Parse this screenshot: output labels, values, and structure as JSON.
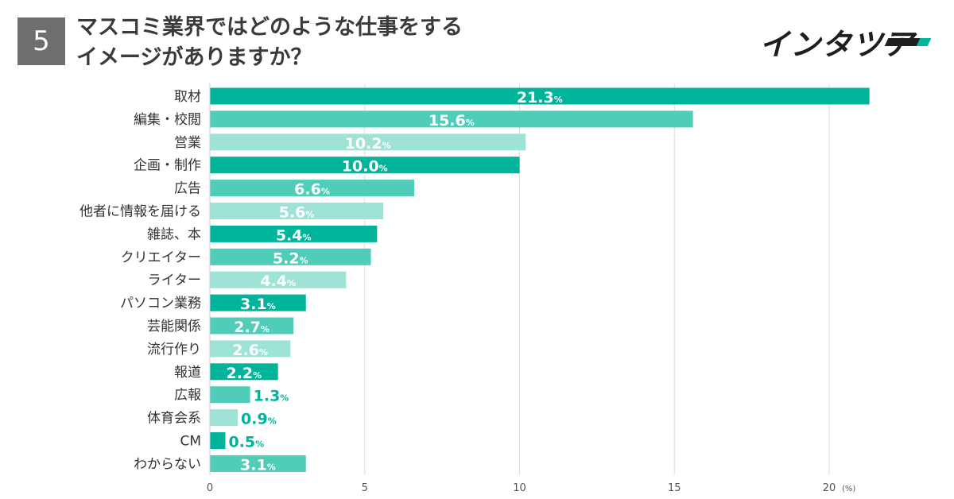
{
  "badge": "5",
  "title_line1": "マスコミ業界ではどのような仕事をする",
  "title_line2": "イメージがありますか？",
  "logo_text": "インタツア",
  "colors": {
    "dark": "#00b39b",
    "mid": "#4fcdb9",
    "light": "#9fe3d7",
    "grid": "#dddddd",
    "text": "#333333"
  },
  "chart_data": {
    "type": "bar",
    "orientation": "horizontal",
    "categories": [
      "取材",
      "編集・校閲",
      "営業",
      "企画・制作",
      "広告",
      "他者に情報を届ける",
      "雑誌、本",
      "クリエイター",
      "ライター",
      "パソコン業務",
      "芸能関係",
      "流行作り",
      "報道",
      "広報",
      "体育会系",
      "CM",
      "わからない"
    ],
    "values": [
      21.3,
      15.6,
      10.2,
      10.0,
      6.6,
      5.6,
      5.4,
      5.2,
      4.4,
      3.1,
      2.7,
      2.6,
      2.2,
      1.3,
      0.9,
      0.5,
      3.1
    ],
    "value_labels": [
      "21.3",
      "15.6",
      "10.2",
      "10.0",
      "6.6",
      "5.6",
      "5.4",
      "5.2",
      "4.4",
      "3.1",
      "2.7",
      "2.6",
      "2.2",
      "1.3",
      "0.9",
      "0.5",
      "3.1"
    ],
    "value_suffix": "%",
    "xlim": [
      0,
      21.3
    ],
    "xticks": [
      "0",
      "5",
      "10",
      "15",
      "20"
    ],
    "xunit": "(%)",
    "grid": true
  }
}
